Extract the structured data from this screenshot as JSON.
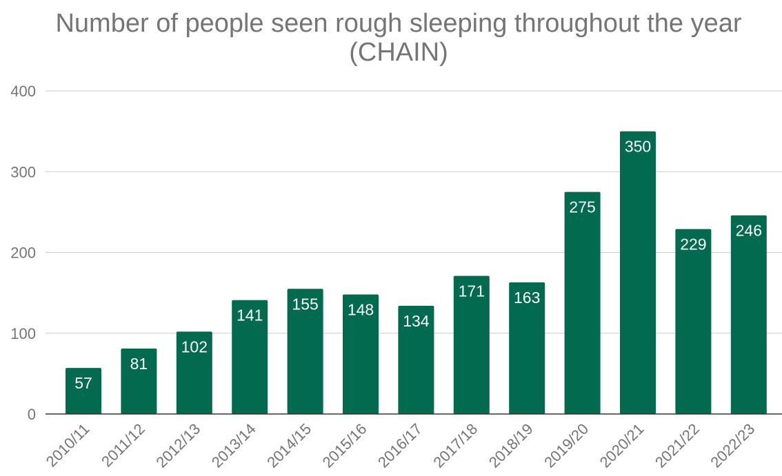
{
  "chart_data": {
    "type": "bar",
    "title": "Number of people seen rough sleeping throughout the year (CHAIN)",
    "title_lines": [
      "Number of people seen rough sleeping throughout the year",
      "(CHAIN)"
    ],
    "categories": [
      "2010/11",
      "2011/12",
      "2012/13",
      "2013/14",
      "2014/15",
      "2015/16",
      "2016/17",
      "2017/18",
      "2018/19",
      "2019/20",
      "2020/21",
      "2021/22",
      "2022/23"
    ],
    "values": [
      57,
      81,
      102,
      141,
      155,
      148,
      134,
      171,
      163,
      275,
      350,
      229,
      246
    ],
    "xlabel": "",
    "ylabel": "",
    "ylim": [
      0,
      400
    ],
    "yticks": [
      0,
      100,
      200,
      300,
      400
    ],
    "grid": true,
    "legend": "none",
    "data_labels": true,
    "colors": {
      "bar": "#016a4f",
      "title": "#757575",
      "tick": "#757575",
      "grid": "#cccccc",
      "label": "#ffffff"
    }
  }
}
